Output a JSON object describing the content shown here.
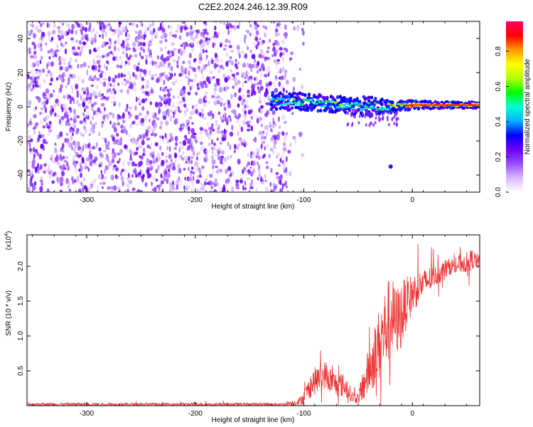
{
  "title": "C2E2.2024.246.12.39.R09",
  "chart_data": [
    {
      "type": "heatmap",
      "xlabel": "Height of straight line (km)",
      "ylabel": "Frequency (Hz)",
      "xlim": [
        -355,
        62
      ],
      "ylim": [
        -50,
        50
      ],
      "xticks": [
        -300,
        -200,
        -100,
        0
      ],
      "xtick_labels": [
        "-300",
        "-200",
        "-100",
        "0"
      ],
      "yticks": [
        -40,
        -20,
        0,
        20,
        40
      ],
      "ytick_labels": [
        "-40",
        "-20",
        "0",
        "20",
        "40"
      ],
      "noise_region_x": [
        -355,
        -115
      ],
      "signal_band": [
        {
          "x": -130,
          "center": 3,
          "width": 9
        },
        {
          "x": -100,
          "center": 3,
          "width": 8
        },
        {
          "x": -80,
          "center": 2,
          "width": 8
        },
        {
          "x": -60,
          "center": 1,
          "width": 8
        },
        {
          "x": -40,
          "center": 0,
          "width": 10
        },
        {
          "x": -20,
          "center": 0,
          "width": 6
        },
        {
          "x": 0,
          "center": 1,
          "width": 4
        },
        {
          "x": 30,
          "center": 1,
          "width": 3
        },
        {
          "x": 62,
          "center": 1,
          "width": 3
        }
      ],
      "colorbar": {
        "label": "Normalized spectral amplitude",
        "range": [
          0.0,
          0.97
        ],
        "ticks": [
          0.0,
          0.2,
          0.4,
          0.6,
          0.8
        ],
        "tick_labels": [
          "0.0",
          "0.2",
          "0.4",
          "0.6",
          "0.8"
        ],
        "colors": [
          "#ffffff",
          "#d9b8ff",
          "#9a4dff",
          "#6a00ff",
          "#0000ff",
          "#00b4ff",
          "#00ffd0",
          "#00ff00",
          "#b4ff00",
          "#ffff00",
          "#ff9900",
          "#ff0000",
          "#ff0066"
        ]
      }
    },
    {
      "type": "line",
      "xlabel": "Height of straight line (km)",
      "ylabel": "SNR (10 * v/v)",
      "exponent_label": "(x10",
      "exponent_power": "4",
      "exponent_close": ")",
      "xlim": [
        -355,
        62
      ],
      "ylim": [
        0,
        2.45
      ],
      "xticks": [
        -300,
        -200,
        -100,
        0
      ],
      "xtick_labels": [
        "-300",
        "-200",
        "-100",
        "0"
      ],
      "yticks": [
        0.5,
        1.0,
        1.5,
        2.0
      ],
      "ytick_labels": [
        "0.5",
        "1.0",
        "1.5",
        "2.0"
      ],
      "color": "#ee3333",
      "series": [
        {
          "x": [
            -355,
            -300,
            -200,
            -120,
            -105,
            -100,
            -95,
            -90,
            -85,
            -80,
            -75,
            -70,
            -65,
            -60,
            -55,
            -50,
            -45,
            -40,
            -35,
            -30,
            -25,
            -20,
            -15,
            -10,
            -5,
            0,
            5,
            10,
            15,
            20,
            25,
            30,
            35,
            40,
            45,
            50,
            55,
            62
          ],
          "y": [
            0.02,
            0.02,
            0.02,
            0.02,
            0.05,
            0.12,
            0.25,
            0.35,
            0.4,
            0.45,
            0.35,
            0.3,
            0.3,
            0.25,
            0.12,
            0.1,
            0.3,
            0.5,
            0.7,
            0.9,
            1.1,
            1.3,
            1.2,
            1.3,
            1.5,
            1.6,
            1.7,
            1.75,
            1.8,
            1.85,
            1.9,
            1.95,
            2.0,
            2.0,
            2.05,
            2.05,
            2.1,
            2.05
          ],
          "noise": [
            0.02,
            0.02,
            0.02,
            0.02,
            0.05,
            0.1,
            0.15,
            0.2,
            0.2,
            0.2,
            0.2,
            0.18,
            0.18,
            0.15,
            0.08,
            0.08,
            0.25,
            0.35,
            0.45,
            0.55,
            0.6,
            0.6,
            0.5,
            0.5,
            0.35,
            0.3,
            0.25,
            0.2,
            0.2,
            0.15,
            0.15,
            0.15,
            0.12,
            0.12,
            0.15,
            0.15,
            0.15,
            0.1
          ]
        }
      ]
    }
  ]
}
